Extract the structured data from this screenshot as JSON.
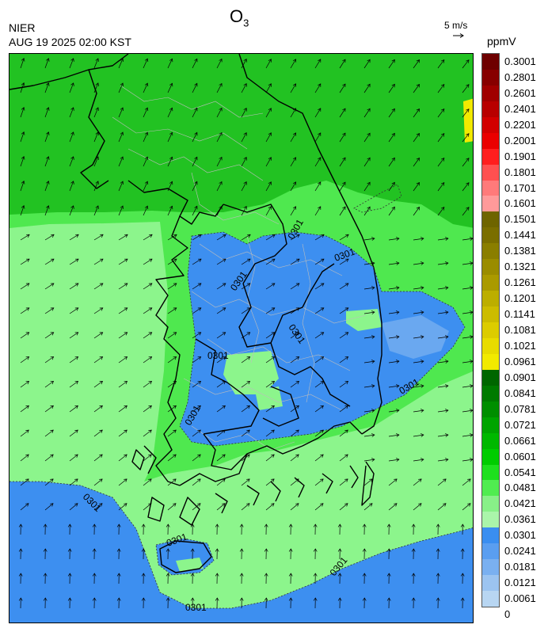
{
  "header": {
    "agency": "NIER",
    "datetime": "AUG 19 2025 02:00 KST",
    "title_main": "O",
    "title_sub": "3",
    "wind_scale_label": "5 m/s",
    "unit": "ppmV"
  },
  "colorbar": {
    "labels": [
      "0.3001",
      "0.2801",
      "0.2601",
      "0.2401",
      "0.2201",
      "0.2001",
      "0.1901",
      "0.1801",
      "0.1701",
      "0.1601",
      "0.1501",
      "0.1441",
      "0.1381",
      "0.1321",
      "0.1261",
      "0.1201",
      "0.1141",
      "0.1081",
      "0.1021",
      "0.0961",
      "0.0901",
      "0.0841",
      "0.0781",
      "0.0721",
      "0.0661",
      "0.0601",
      "0.0541",
      "0.0481",
      "0.0421",
      "0.0361",
      "0.0301",
      "0.0241",
      "0.0181",
      "0.0121",
      "0.0061",
      "0"
    ],
    "colors": [
      "#6e0000",
      "#870000",
      "#a00000",
      "#b80000",
      "#d20000",
      "#ea0000",
      "#ff1e1e",
      "#ff5050",
      "#ff7a7a",
      "#ff9a9a",
      "#6e6400",
      "#7a6e00",
      "#8a7e00",
      "#9a8c00",
      "#aa9a00",
      "#bcae00",
      "#ccbc00",
      "#dccc00",
      "#e8dc00",
      "#f2ea00",
      "#006600",
      "#007a00",
      "#008e00",
      "#00a400",
      "#00b800",
      "#00cc00",
      "#1ee01e",
      "#50ec50",
      "#88f088",
      "#aaf5aa",
      "#3a8ef0",
      "#5a9ef0",
      "#7ab0f0",
      "#9cc4f0",
      "#b8d6f2"
    ]
  },
  "map": {
    "contour_label": "0301",
    "colors": {
      "sea_north": "#22c222",
      "sea_mid": "#4fe84f",
      "light_green": "#8cf58c",
      "blue": "#3d8ff0",
      "light_blue": "#6aa8f0",
      "yellow": "#f2ea00",
      "coast": "#000000",
      "boundary": "#bdbdbd"
    }
  }
}
